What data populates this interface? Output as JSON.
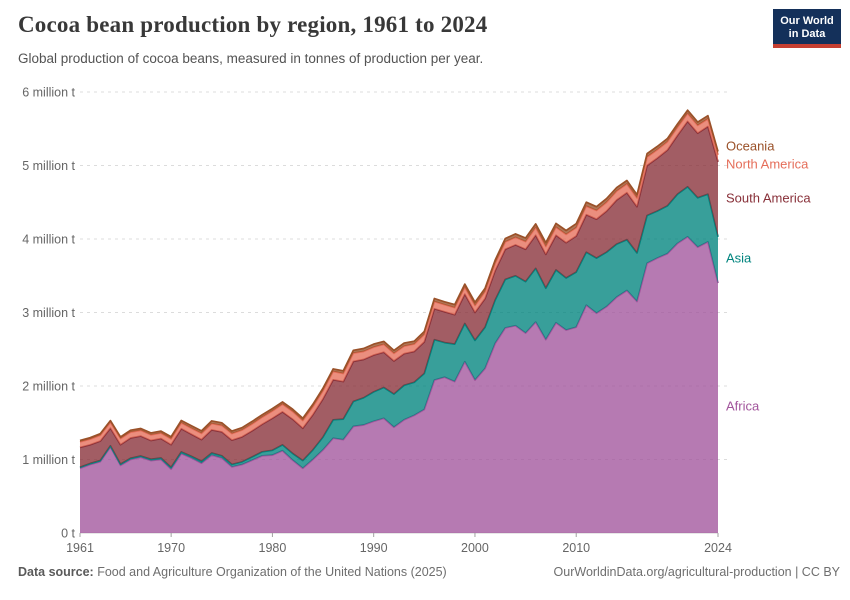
{
  "header": {
    "title": "Cocoa bean production by region, 1961 to 2024",
    "subtitle": "Global production of cocoa beans, measured in tonnes of production per year.",
    "logo": {
      "line1": "Our World",
      "line2": "in Data"
    }
  },
  "chart_data": {
    "type": "area",
    "stacked": true,
    "title": "Cocoa bean production by region, 1961 to 2024",
    "xlabel": "",
    "ylabel": "tonnes of production per year",
    "values_unit": "thousand tonnes",
    "ylim": [
      0,
      6000000
    ],
    "grid": "dashed horizontal",
    "legend_position": "right",
    "x": [
      1961,
      1962,
      1963,
      1964,
      1965,
      1966,
      1967,
      1968,
      1969,
      1970,
      1971,
      1972,
      1973,
      1974,
      1975,
      1976,
      1977,
      1978,
      1979,
      1980,
      1981,
      1982,
      1983,
      1984,
      1985,
      1986,
      1987,
      1988,
      1989,
      1990,
      1991,
      1992,
      1993,
      1994,
      1995,
      1996,
      1997,
      1998,
      1999,
      2000,
      2001,
      2002,
      2003,
      2004,
      2005,
      2006,
      2007,
      2008,
      2009,
      2010,
      2011,
      2012,
      2013,
      2014,
      2015,
      2016,
      2017,
      2018,
      2019,
      2020,
      2021,
      2022,
      2023,
      2024
    ],
    "x_ticks": [
      1961,
      1970,
      1980,
      1990,
      2000,
      2010,
      2024
    ],
    "y_ticks": [
      {
        "v": 0,
        "label": "0 t"
      },
      {
        "v": 1,
        "label": "1 million t"
      },
      {
        "v": 2,
        "label": "2 million t"
      },
      {
        "v": 3,
        "label": "3 million t"
      },
      {
        "v": 4,
        "label": "4 million t"
      },
      {
        "v": 5,
        "label": "5 million t"
      },
      {
        "v": 6,
        "label": "6 million t"
      }
    ],
    "series": [
      {
        "name": "Africa",
        "color": "#a2559c",
        "values": [
          880,
          930,
          970,
          1170,
          920,
          1000,
          1030,
          985,
          1000,
          870,
          1080,
          1020,
          950,
          1060,
          1020,
          900,
          930,
          990,
          1050,
          1060,
          1120,
          990,
          880,
          1000,
          1130,
          1290,
          1270,
          1450,
          1470,
          1520,
          1560,
          1440,
          1540,
          1600,
          1680,
          2080,
          2120,
          2060,
          2330,
          2080,
          2240,
          2580,
          2790,
          2820,
          2720,
          2870,
          2630,
          2860,
          2760,
          2800,
          3100,
          2990,
          3080,
          3210,
          3300,
          3150,
          3670,
          3740,
          3800,
          3940,
          4030,
          3890,
          3960,
          3400
        ]
      },
      {
        "name": "Asia",
        "color": "#00847e",
        "values": [
          15,
          15,
          16,
          16,
          17,
          18,
          18,
          19,
          20,
          22,
          23,
          24,
          26,
          28,
          30,
          33,
          38,
          45,
          55,
          65,
          78,
          92,
          105,
          130,
          175,
          250,
          280,
          340,
          370,
          400,
          420,
          450,
          470,
          450,
          490,
          550,
          470,
          510,
          520,
          540,
          560,
          590,
          660,
          680,
          700,
          730,
          700,
          720,
          710,
          750,
          720,
          750,
          740,
          720,
          690,
          660,
          650,
          640,
          650,
          670,
          680,
          670,
          650,
          630
        ]
      },
      {
        "name": "South America",
        "color": "#883039",
        "values": [
          270,
          255,
          265,
          240,
          265,
          275,
          270,
          255,
          265,
          310,
          315,
          300,
          295,
          315,
          325,
          330,
          340,
          355,
          375,
          435,
          450,
          465,
          440,
          480,
          520,
          545,
          510,
          545,
          520,
          500,
          480,
          450,
          430,
          420,
          430,
          420,
          420,
          400,
          400,
          380,
          390,
          400,
          410,
          420,
          440,
          450,
          460,
          470,
          480,
          490,
          510,
          530,
          560,
          600,
          640,
          630,
          680,
          720,
          760,
          800,
          890,
          880,
          920,
          1020
        ]
      },
      {
        "name": "North America",
        "color": "#e56e5a",
        "values": [
          75,
          76,
          78,
          80,
          82,
          80,
          78,
          76,
          74,
          78,
          80,
          82,
          84,
          86,
          88,
          90,
          92,
          94,
          97,
          100,
          104,
          106,
          104,
          107,
          110,
          112,
          110,
          112,
          110,
          108,
          106,
          104,
          102,
          100,
          100,
          98,
          96,
          95,
          94,
          95,
          96,
          98,
          100,
          102,
          104,
          106,
          108,
          110,
          112,
          114,
          116,
          118,
          120,
          122,
          120,
          118,
          116,
          114,
          112,
          110,
          108,
          106,
          104,
          95
        ]
      },
      {
        "name": "Oceania",
        "color": "#9a5129",
        "values": [
          20,
          21,
          22,
          23,
          24,
          25,
          26,
          27,
          28,
          30,
          32,
          33,
          34,
          36,
          36,
          34,
          33,
          34,
          33,
          32,
          31,
          32,
          33,
          34,
          35,
          36,
          37,
          39,
          40,
          42,
          41,
          40,
          41,
          40,
          41,
          42,
          40,
          42,
          43,
          44,
          45,
          46,
          47,
          48,
          49,
          50,
          51,
          52,
          53,
          54,
          55,
          52,
          50,
          48,
          46,
          45,
          46,
          45,
          44,
          45,
          44,
          45,
          44,
          45
        ]
      }
    ]
  },
  "legend": [
    {
      "label": "Oceania",
      "color": "#9a5129"
    },
    {
      "label": "North America",
      "color": "#e56e5a"
    },
    {
      "label": "South America",
      "color": "#883039"
    },
    {
      "label": "Asia",
      "color": "#00847e"
    },
    {
      "label": "Africa",
      "color": "#a2559c"
    }
  ],
  "footer": {
    "source_label": "Data source:",
    "source_text": " Food and Agriculture Organization of the United Nations (2025)",
    "right_text": "OurWorldinData.org/agricultural-production | CC BY"
  }
}
